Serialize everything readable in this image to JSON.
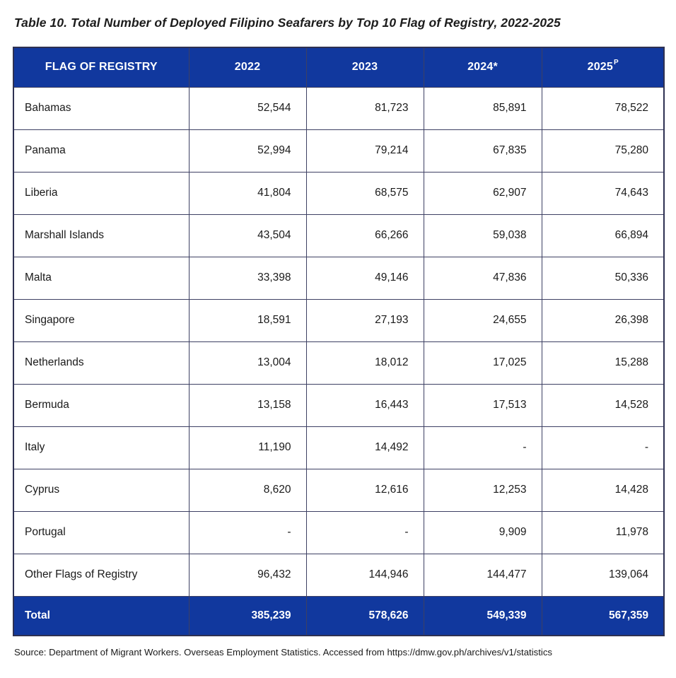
{
  "page": {
    "title": "Table 10. Total Number of Deployed Filipino Seafarers by Top 10 Flag of Registry, 2022-2025",
    "source_note": "Source: Department of Migrant Workers. Overseas Employment Statistics. Accessed from https://dmw.gov.ph/archives/v1/statistics"
  },
  "colors": {
    "header_bg": "#11389E",
    "header_text": "#FFFFFF",
    "border": "#2E3152",
    "border_inner": "#3D4063",
    "body_text": "#1A1A1A"
  },
  "table": {
    "columns": [
      {
        "label": "FLAG OF REGISTRY",
        "sup": ""
      },
      {
        "label": "2022",
        "sup": ""
      },
      {
        "label": "2023",
        "sup": ""
      },
      {
        "label": "2024*",
        "sup": ""
      },
      {
        "label": "2025",
        "sup": "P"
      }
    ],
    "rows": [
      {
        "flag": "Bahamas",
        "values": [
          "52,544",
          "81,723",
          "85,891",
          "78,522"
        ]
      },
      {
        "flag": "Panama",
        "values": [
          "52,994",
          "79,214",
          "67,835",
          "75,280"
        ]
      },
      {
        "flag": "Liberia",
        "values": [
          "41,804",
          "68,575",
          "62,907",
          "74,643"
        ]
      },
      {
        "flag": "Marshall Islands",
        "values": [
          "43,504",
          "66,266",
          "59,038",
          "66,894"
        ]
      },
      {
        "flag": "Malta",
        "values": [
          "33,398",
          "49,146",
          "47,836",
          "50,336"
        ]
      },
      {
        "flag": "Singapore",
        "values": [
          "18,591",
          "27,193",
          "24,655",
          "26,398"
        ]
      },
      {
        "flag": "Netherlands",
        "values": [
          "13,004",
          "18,012",
          "17,025",
          "15,288"
        ]
      },
      {
        "flag": "Bermuda",
        "values": [
          "13,158",
          "16,443",
          "17,513",
          "14,528"
        ]
      },
      {
        "flag": "Italy",
        "values": [
          "11,190",
          "14,492",
          "-",
          "-"
        ]
      },
      {
        "flag": "Cyprus",
        "values": [
          "8,620",
          "12,616",
          "12,253",
          "14,428"
        ]
      },
      {
        "flag": "Portugal",
        "values": [
          "-",
          "-",
          "9,909",
          "11,978"
        ]
      },
      {
        "flag": "Other Flags of Registry",
        "values": [
          "96,432",
          "144,946",
          "144,477",
          "139,064"
        ]
      }
    ],
    "total": {
      "label": "Total",
      "values": [
        "385,239",
        "578,626",
        "549,339",
        "567,359"
      ]
    }
  },
  "chart_data": {
    "type": "table",
    "title": "Table 10. Total Number of Deployed Filipino Seafarers by Top 10 Flag of Registry, 2022-2025",
    "columns": [
      "FLAG OF REGISTRY",
      "2022",
      "2023",
      "2024*",
      "2025P"
    ],
    "missing_value_marker": "-",
    "rows": [
      {
        "flag": "Bahamas",
        "y2022": 52544,
        "y2023": 81723,
        "y2024": 85891,
        "y2025": 78522
      },
      {
        "flag": "Panama",
        "y2022": 52994,
        "y2023": 79214,
        "y2024": 67835,
        "y2025": 75280
      },
      {
        "flag": "Liberia",
        "y2022": 41804,
        "y2023": 68575,
        "y2024": 62907,
        "y2025": 74643
      },
      {
        "flag": "Marshall Islands",
        "y2022": 43504,
        "y2023": 66266,
        "y2024": 59038,
        "y2025": 66894
      },
      {
        "flag": "Malta",
        "y2022": 33398,
        "y2023": 49146,
        "y2024": 47836,
        "y2025": 50336
      },
      {
        "flag": "Singapore",
        "y2022": 18591,
        "y2023": 27193,
        "y2024": 24655,
        "y2025": 26398
      },
      {
        "flag": "Netherlands",
        "y2022": 13004,
        "y2023": 18012,
        "y2024": 17025,
        "y2025": 15288
      },
      {
        "flag": "Bermuda",
        "y2022": 13158,
        "y2023": 16443,
        "y2024": 17513,
        "y2025": 14528
      },
      {
        "flag": "Italy",
        "y2022": 11190,
        "y2023": 14492,
        "y2024": null,
        "y2025": null
      },
      {
        "flag": "Cyprus",
        "y2022": 8620,
        "y2023": 12616,
        "y2024": 12253,
        "y2025": 14428
      },
      {
        "flag": "Portugal",
        "y2022": null,
        "y2023": null,
        "y2024": 9909,
        "y2025": 11978
      },
      {
        "flag": "Other Flags of Registry",
        "y2022": 96432,
        "y2023": 144946,
        "y2024": 144477,
        "y2025": 139064
      }
    ],
    "total": {
      "flag": "Total",
      "y2022": 385239,
      "y2023": 578626,
      "y2024": 549339,
      "y2025": 567359
    },
    "source": "Source: Department of Migrant Workers. Overseas Employment Statistics. Accessed from https://dmw.gov.ph/archives/v1/statistics"
  }
}
